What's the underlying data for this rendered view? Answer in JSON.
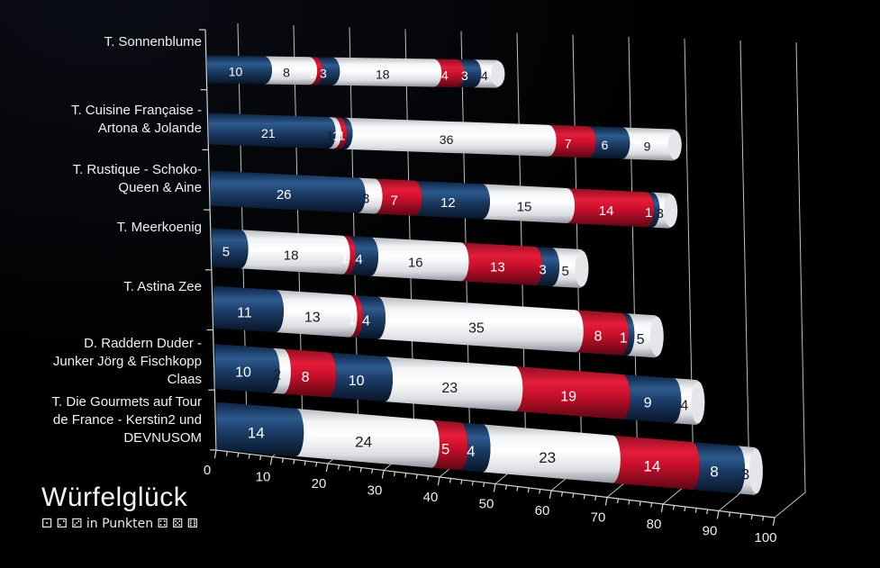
{
  "title": "Würfelglück",
  "subtitle_full": "⚀ ⚁ ⚂ in Punkten ⚃ ⚄ ⚅",
  "colors": {
    "background": "#000000",
    "navy": "#1b3c66",
    "red": "#d3102c",
    "white": "#f4f5f6",
    "grid": "#d6d6d6",
    "axis_text": "#ececec",
    "label_on_dark": "#ffffff",
    "label_on_light": "#1a1a24"
  },
  "chart_data": {
    "type": "bar",
    "stacked": true,
    "orientation": "horizontal",
    "projection": "3d-cylinder",
    "title": "Würfelglück",
    "subtitle": "in Punkten",
    "xlim": [
      0,
      100
    ],
    "xticks": [
      0,
      10,
      20,
      30,
      40,
      50,
      60,
      70,
      80,
      90,
      100
    ],
    "grid": true,
    "legend": "none",
    "color_cycle": [
      "navy",
      "white",
      "red"
    ],
    "categories": [
      "T. Sonnenblume",
      "T. Cuisine Française - Artona & Jolande",
      "T. Rustique - Schoko-Queen & Aine",
      "T. Meerkoenig",
      "T. Astina Zee",
      "D. Raddern Duder - Junker Jörg & Fischkopp Claas",
      "T. Die Gourmets auf Tour de France - Kerstin2 und DEVNUSOM"
    ],
    "category_lines": [
      [
        "T. Sonnenblume"
      ],
      [
        "T. Cuisine Française -",
        "Artona & Jolande"
      ],
      [
        "T. Rustique - Schoko-",
        "Queen & Aine"
      ],
      [
        "T. Meerkoenig"
      ],
      [
        "T. Astina Zee"
      ],
      [
        "D. Raddern Duder -",
        "Junker Jörg & Fischkopp",
        "Claas"
      ],
      [
        "T. Die Gourmets auf Tour",
        "de France - Kerstin2 und",
        "DEVNUSOM"
      ]
    ],
    "rows": [
      {
        "category": "T. Sonnenblume",
        "values": [
          10,
          8,
          1,
          3,
          18,
          4,
          3,
          4
        ],
        "total": 51
      },
      {
        "category": "T. Cuisine Française - Artona & Jolande",
        "values": [
          21,
          1,
          1,
          1,
          36,
          7,
          6,
          9
        ],
        "total": 82
      },
      {
        "category": "T. Rustique - Schoko-Queen & Aine",
        "values": [
          26,
          3,
          7,
          12,
          15,
          14,
          1,
          3
        ],
        "total": 81
      },
      {
        "category": "T. Meerkoenig",
        "values": [
          5,
          18,
          1,
          4,
          16,
          13,
          3,
          5
        ],
        "total": 65
      },
      {
        "category": "T. Astina Zee",
        "values": [
          11,
          13,
          1,
          4,
          35,
          8,
          1,
          5
        ],
        "total": 78
      },
      {
        "category": "D. Raddern Duder - Junker Jörg & Fischkopp Claas",
        "values": [
          10,
          2,
          8,
          10,
          23,
          19,
          9,
          4
        ],
        "total": 85
      },
      {
        "category": "T. Die Gourmets auf Tour de France - Kerstin2 und DEVNUSOM",
        "values": [
          14,
          24,
          5,
          4,
          23,
          14,
          8,
          3
        ],
        "total": 95
      }
    ]
  }
}
